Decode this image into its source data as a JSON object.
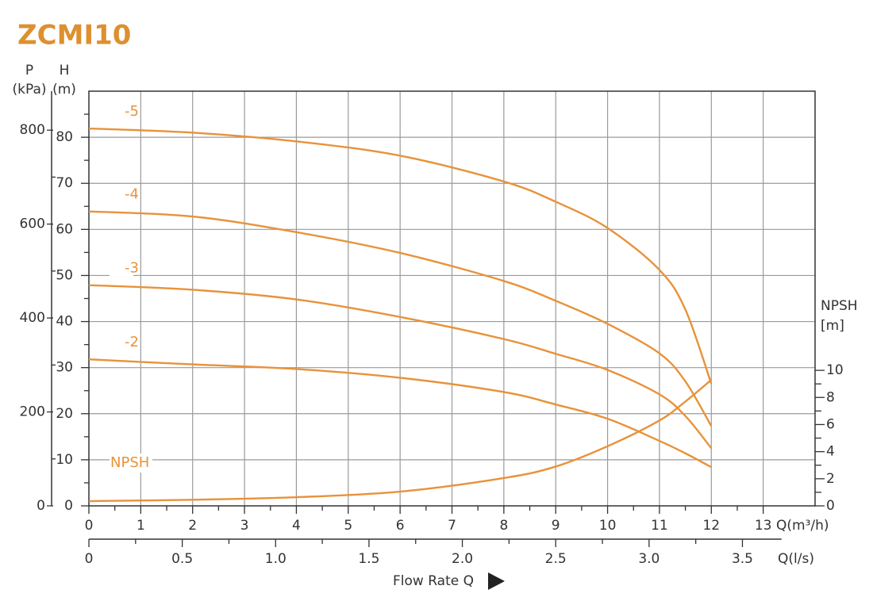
{
  "chart_data": {
    "type": "line",
    "title": "ZCMI10",
    "title_color": "#dd9030",
    "x_label": "Q(m³/h)",
    "x2_label": "Q(l/s)",
    "axis_title": "Flow Rate Q",
    "y_label": "H",
    "y_unit": "(m)",
    "p_label": "P",
    "p_unit": "(kPa)",
    "y2_label": "NPSH",
    "y2_unit": "[m]",
    "grid": true,
    "xlim": [
      0,
      14
    ],
    "xticks": [
      0,
      1,
      2,
      3,
      4,
      5,
      6,
      7,
      8,
      9,
      10,
      11,
      12,
      13
    ],
    "x2lim": [
      0,
      3.889
    ],
    "x2ticks": [
      0,
      0.5,
      {
        "value": 1,
        "label": "1.0"
      },
      1.5,
      {
        "value": 2,
        "label": "2.0"
      },
      2.5,
      {
        "value": 3,
        "label": "3.0"
      },
      3.5
    ],
    "ylim": [
      0,
      90
    ],
    "yticks": [
      0,
      10,
      20,
      30,
      40,
      50,
      60,
      70,
      80
    ],
    "plim": [
      0,
      883
    ],
    "pticks": [
      0,
      200,
      400,
      600,
      800
    ],
    "y2lim": [
      0,
      30.6
    ],
    "y2ticks": [
      0,
      2,
      4,
      6,
      8,
      10
    ],
    "x": [
      0,
      2,
      4,
      6,
      8,
      9,
      10,
      11,
      11.5,
      12
    ],
    "series": [
      {
        "name": "-5",
        "color": "#e8923a",
        "values": [
          81.9,
          81,
          79.1,
          76,
          70.4,
          66,
          60.3,
          51.2,
          42.6,
          26.5
        ]
      },
      {
        "name": "-4",
        "color": "#e8923a",
        "values": [
          63.9,
          62.8,
          59.4,
          54.9,
          48.8,
          44.5,
          39.5,
          33.1,
          27,
          17.3
        ]
      },
      {
        "name": "-3",
        "color": "#e8923a",
        "values": [
          47.9,
          46.9,
          44.8,
          41,
          36.2,
          33,
          29.5,
          24.2,
          19.5,
          12.5
        ]
      },
      {
        "name": "-2",
        "color": "#e8923a",
        "values": [
          31.8,
          30.7,
          29.7,
          27.8,
          24.7,
          22,
          18.9,
          14.1,
          11.4,
          8.4
        ]
      },
      {
        "name": "NPSH",
        "color": "#e8923a",
        "axis": "y2",
        "values": [
          0.35,
          0.45,
          0.64,
          1.05,
          2.05,
          2.9,
          4.4,
          6.3,
          7.7,
          9.3
        ]
      }
    ]
  }
}
